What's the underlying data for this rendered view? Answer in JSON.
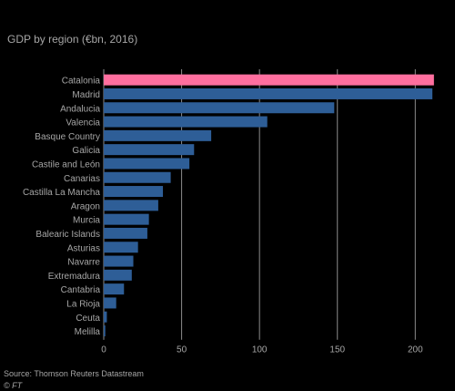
{
  "chart_data": {
    "type": "bar",
    "orientation": "horizontal",
    "title": "GDP by region (€bn, 2016)",
    "categories": [
      "Catalonia",
      "Madrid",
      "Andalucia",
      "Valencia",
      "Basque Country",
      "Galicia",
      "Castile and León",
      "Canarias",
      "Castilla La Mancha",
      "Aragon",
      "Murcia",
      "Balearic Islands",
      "Asturias",
      "Navarre",
      "Extremadura",
      "Cantabria",
      "La Rioja",
      "Ceuta",
      "Melilla"
    ],
    "values": [
      212,
      211,
      148,
      105,
      69,
      58,
      55,
      43,
      38,
      35,
      29,
      28,
      22,
      19,
      18,
      13,
      8,
      2,
      1
    ],
    "highlight_index": 0,
    "xlim": [
      0,
      215
    ],
    "xticks": [
      0,
      50,
      100,
      150,
      200
    ],
    "grid": true,
    "colors": {
      "bar": "#2e5e97",
      "highlight": "#ff6f9f",
      "grid": "#8c8c8c",
      "text": "#a6a6a6",
      "background": "#000000"
    }
  },
  "footer": {
    "source": "Source: Thomson Reuters Datastream",
    "credit": "© FT"
  }
}
